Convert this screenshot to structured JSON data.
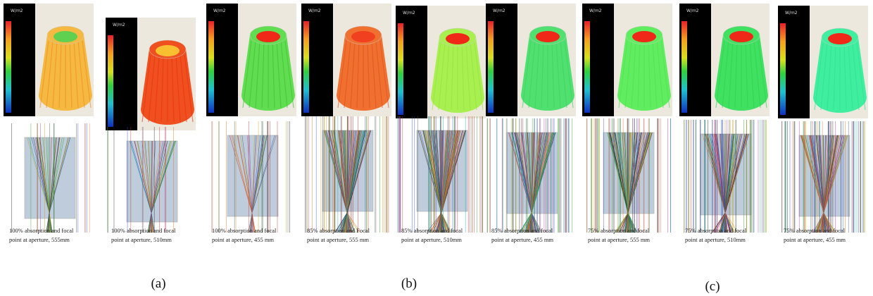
{
  "figure": {
    "panels": [
      {
        "unit": "W/m2",
        "caption": [
          "100% absorption and focal",
          "point at aperture, 555mm"
        ]
      },
      {
        "unit": "W/m2",
        "caption": [
          "100% absorption and focal",
          "point at aperture, 510mm"
        ]
      },
      {
        "unit": "W/m2",
        "caption": [
          "100% absorption and focal",
          "point at aperture, 455 mm"
        ]
      },
      {
        "unit": "W/m2",
        "caption": [
          "85% absorption and Focal",
          "point at aperture, 555 mm"
        ]
      },
      {
        "unit": "W/m2",
        "caption": [
          "85% absorption and focal",
          "point at aperture, 510mm"
        ]
      },
      {
        "unit": "W/m2",
        "caption": [
          "85% absorption and focal",
          "point at aperture, 455 mm"
        ]
      },
      {
        "unit": "W/m2",
        "caption": [
          "75% absorption and focal",
          "point at aperture, 555 mm"
        ]
      },
      {
        "unit": "W/m2",
        "caption": [
          "75% absorption and focal",
          "point at aperture, 510mm"
        ]
      },
      {
        "unit": "W/m2",
        "caption": [
          "75% absorption and focal",
          "point at aperture, 455 mm"
        ]
      }
    ],
    "group_labels": [
      "(a)",
      "(b)",
      "(c)"
    ]
  }
}
